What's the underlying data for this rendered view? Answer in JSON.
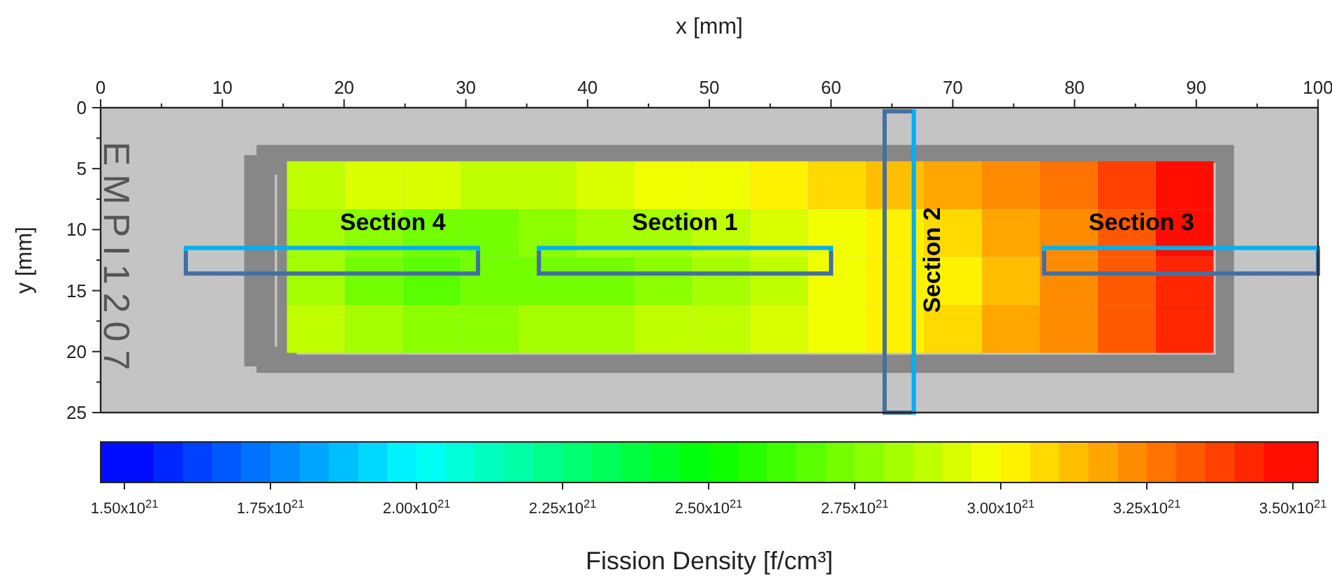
{
  "chart_data": {
    "type": "heatmap",
    "xlabel": "x [mm]",
    "ylabel": "y [mm]",
    "clabel": "Fission Density [f/cm³]",
    "x": [
      17.68,
      22.44,
      27.2,
      31.95,
      36.71,
      41.47,
      46.22,
      50.98,
      55.74,
      60.49,
      65.25,
      70.01,
      74.77,
      79.52,
      84.28,
      89.04
    ],
    "y": [
      6.36,
      10.29,
      14.21,
      18.14
    ],
    "cells": [
      [
        2.85e+21,
        2.9e+21,
        2.9e+21,
        2.85e+21,
        2.85e+21,
        2.9e+21,
        2.95e+21,
        2.95e+21,
        3e+21,
        3.05e+21,
        3.1e+21,
        3.15e+21,
        3.2e+21,
        3.25e+21,
        3.35e+21,
        3.45e+21
      ],
      [
        2.8e+21,
        2.75e+21,
        2.7e+21,
        2.7e+21,
        2.75e+21,
        2.8e+21,
        2.8e+21,
        2.85e+21,
        2.9e+21,
        2.95e+21,
        3e+21,
        3.05e+21,
        3.15e+21,
        3.2e+21,
        3.3e+21,
        3.45e+21
      ],
      [
        2.8e+21,
        2.7e+21,
        2.65e+21,
        2.7e+21,
        2.7e+21,
        2.7e+21,
        2.75e+21,
        2.8e+21,
        2.85e+21,
        2.95e+21,
        3e+21,
        3e+21,
        3.1e+21,
        3.2e+21,
        3.3e+21,
        3.4e+21
      ],
      [
        2.85e+21,
        2.8e+21,
        2.75e+21,
        2.75e+21,
        2.8e+21,
        2.8e+21,
        2.85e+21,
        2.85e+21,
        2.9e+21,
        2.95e+21,
        3e+21,
        3.05e+21,
        3.15e+21,
        3.2e+21,
        3.3e+21,
        3.4e+21
      ]
    ],
    "xlim": [
      0,
      100
    ],
    "xticks": [
      0,
      10,
      20,
      30,
      40,
      50,
      60,
      70,
      80,
      90,
      100
    ],
    "ylim": [
      25,
      0
    ],
    "yticks": [
      0,
      5,
      10,
      15,
      20,
      25
    ],
    "clim": [
      1.5e+21,
      3.5e+21
    ],
    "cticks": [
      {
        "value": 1.5e+21,
        "label": "1.50x10$^{21}$"
      },
      {
        "value": 1.75e+21,
        "label": "1.75x10$^{21}$"
      },
      {
        "value": 2e+21,
        "label": "2.00x10$^{21}$"
      },
      {
        "value": 2.25e+21,
        "label": "2.25x10$^{21}$"
      },
      {
        "value": 2.5e+21,
        "label": "2.50x10$^{21}$"
      },
      {
        "value": 2.75e+21,
        "label": "2.75x10$^{21}$"
      },
      {
        "value": 3e+21,
        "label": "3.00x10$^{21}$"
      },
      {
        "value": 3.25e+21,
        "label": "3.25x10$^{21}$"
      },
      {
        "value": 3.5e+21,
        "label": "3.50x10$^{21}$"
      }
    ],
    "annotations": [
      "Section 4",
      "Section 1",
      "Section 2",
      "Section 3",
      "EMPI1207"
    ]
  }
}
